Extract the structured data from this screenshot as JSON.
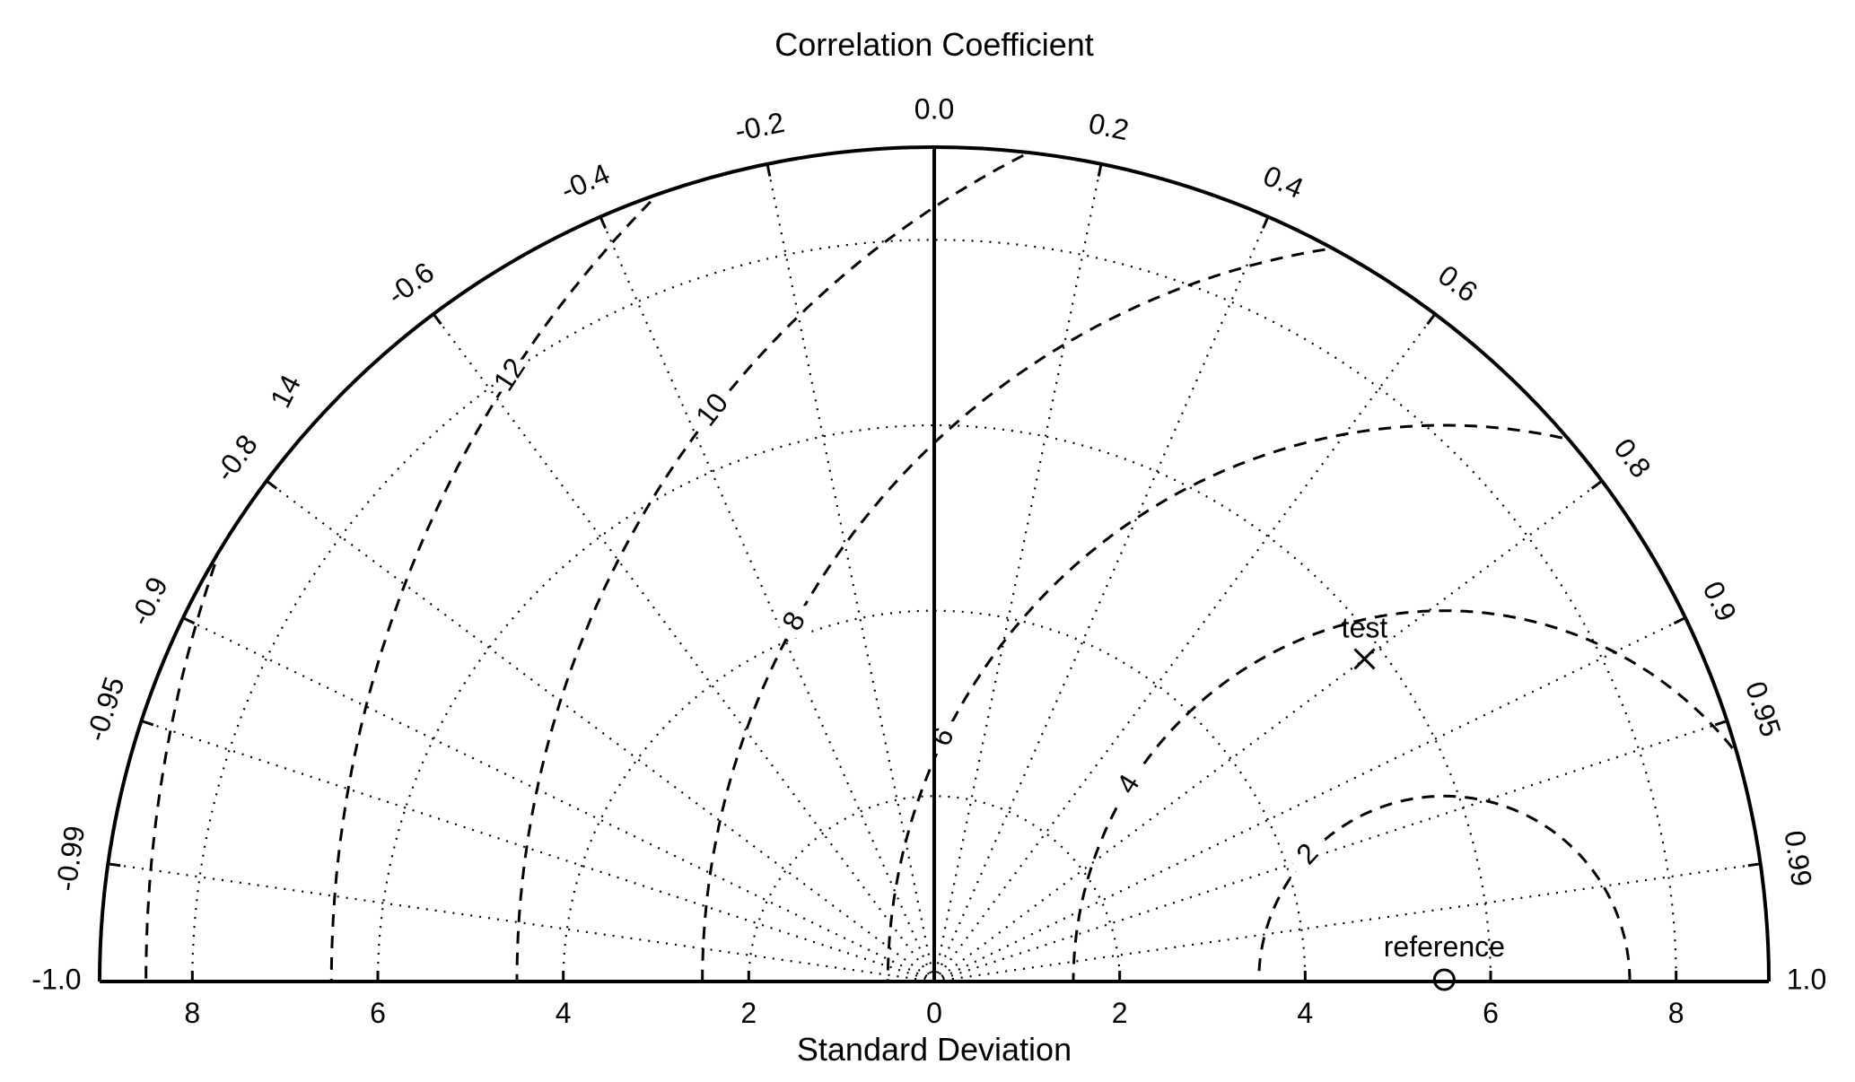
{
  "chart_data": {
    "type": "taylor-diagram",
    "title": "Correlation Coefficient",
    "xlabel": "Standard Deviation",
    "std_range": [
      -9,
      9
    ],
    "std_ticks": [
      8,
      6,
      4,
      2,
      0,
      2,
      4,
      6,
      8
    ],
    "std_tick_values": [
      -8,
      -6,
      -4,
      -2,
      0,
      2,
      4,
      6,
      8
    ],
    "std_circles": [
      2,
      4,
      6,
      8
    ],
    "correlation_ticks": [
      "-1.0",
      "-0.99",
      "-0.95",
      "-0.9",
      "-0.8",
      "-0.6",
      "-0.4",
      "-0.2",
      "0.0",
      "0.2",
      "0.4",
      "0.6",
      "0.8",
      "0.9",
      "0.95",
      "0.99",
      "1.0"
    ],
    "correlation_values": [
      -1.0,
      -0.99,
      -0.95,
      -0.9,
      -0.8,
      -0.6,
      -0.4,
      -0.2,
      0.0,
      0.2,
      0.4,
      0.6,
      0.8,
      0.9,
      0.95,
      0.99,
      1.0
    ],
    "rms_contours": [
      2,
      4,
      6,
      8,
      10,
      12,
      14
    ],
    "rms_labels": [
      "2",
      "4",
      "6",
      "8",
      "10",
      "12",
      "14"
    ],
    "points": [
      {
        "name": "reference",
        "std": 5.5,
        "correlation": 1.0,
        "marker": "circle"
      },
      {
        "name": "test",
        "std": 5.8,
        "correlation": 0.8,
        "marker": "x"
      }
    ]
  }
}
